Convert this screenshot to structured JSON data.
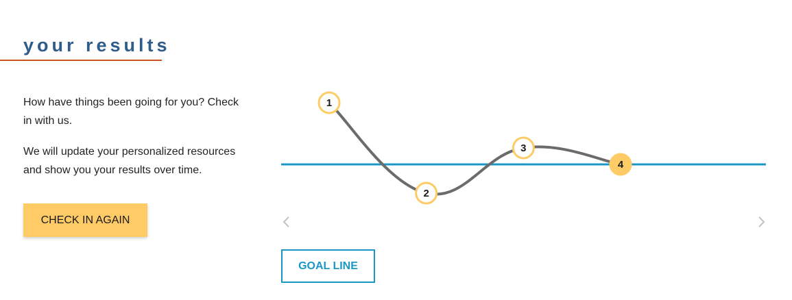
{
  "header": {
    "title": "your results"
  },
  "intro": {
    "paragraph1": "How have things been going for you? Check in with us.",
    "paragraph2": "We will update your personalized resources and show you your results over time."
  },
  "actions": {
    "check_in_label": "CHECK IN AGAIN",
    "goal_line_label": "GOAL LINE"
  },
  "carousel": {
    "prev_icon": "chevron-left-icon",
    "next_icon": "chevron-right-icon"
  },
  "chart_data": {
    "type": "line",
    "title": "",
    "xlabel": "",
    "ylabel": "",
    "grid": false,
    "x": [
      1,
      2,
      3,
      4
    ],
    "point_labels": [
      "1",
      "2",
      "3",
      "4"
    ],
    "series": [
      {
        "values": [
          1.5,
          -0.7,
          0.4,
          0
        ]
      }
    ],
    "goal_line": 0,
    "ylim": [
      -1,
      2
    ],
    "active_point": 4
  },
  "colors": {
    "heading": "#2e5d8a",
    "heading_rule": "#c8501e",
    "accent_yellow": "#fecb66",
    "goal_line": "#1a97c4",
    "series_line": "#6b6b6b",
    "arrow": "#c4c4c4"
  }
}
